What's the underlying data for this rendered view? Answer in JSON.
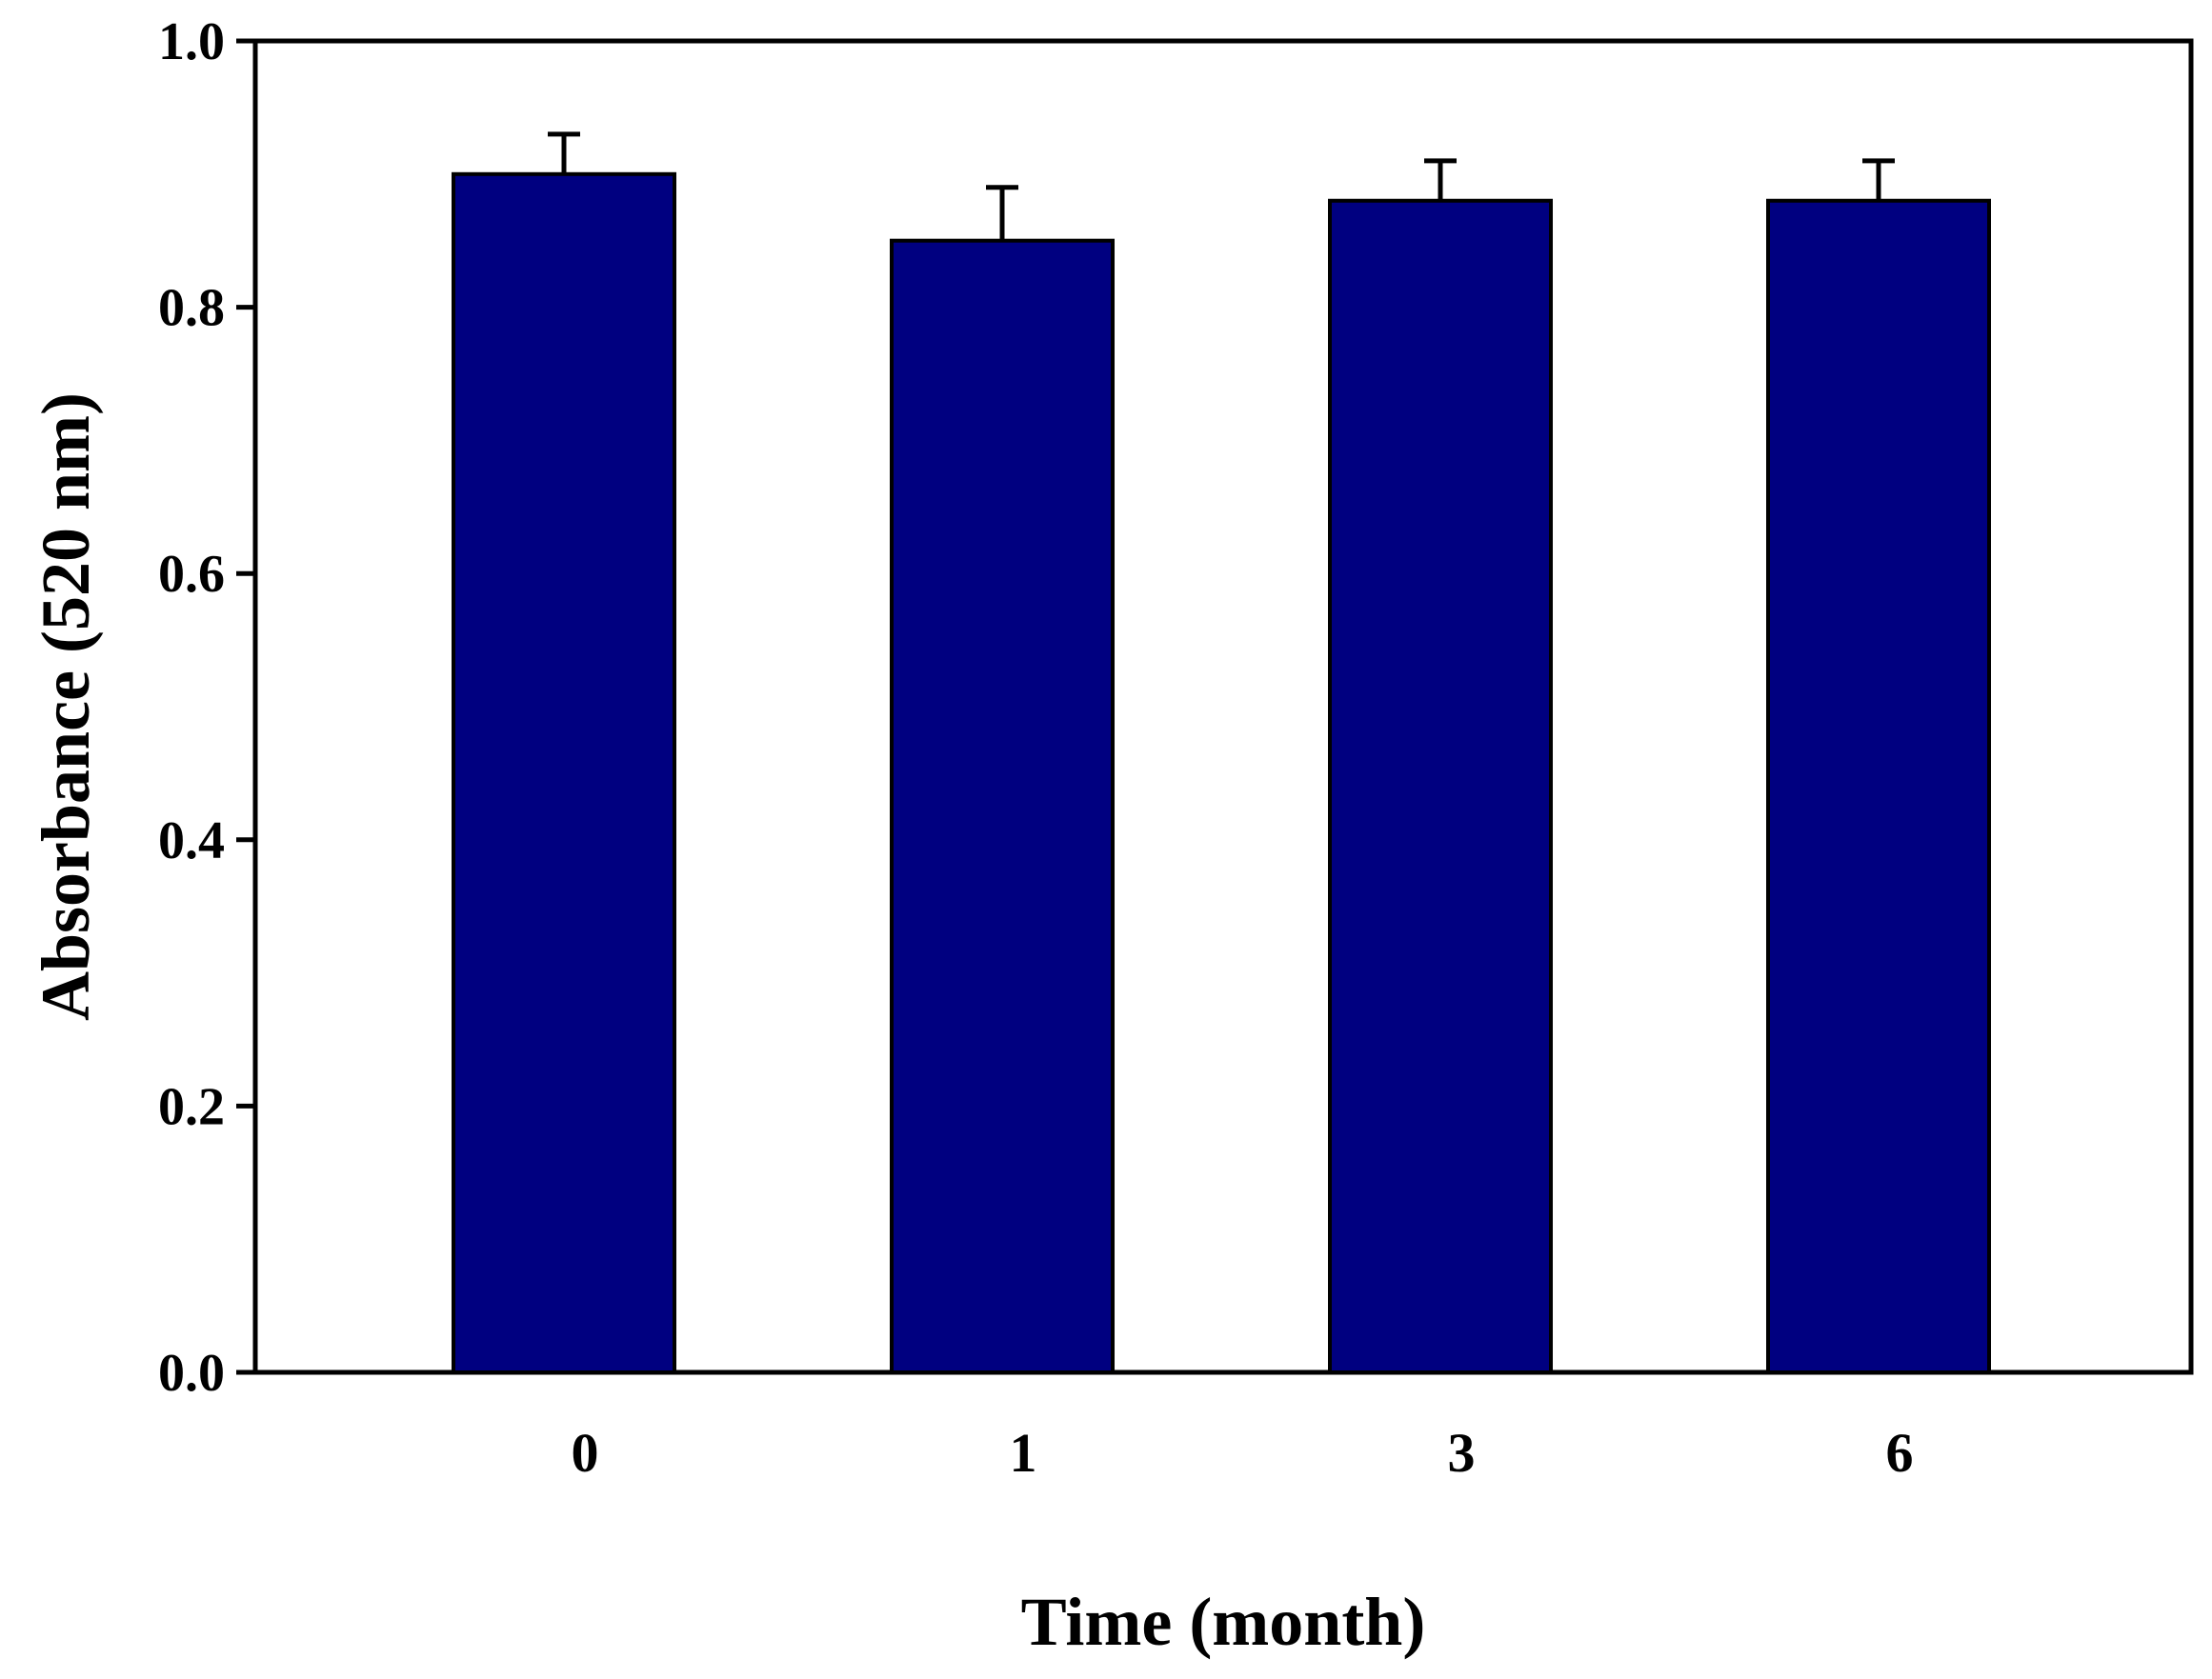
{
  "chart_data": {
    "type": "bar",
    "title": "",
    "xlabel": "Time (month)",
    "ylabel": "Absorbance (520 nm)",
    "categories": [
      "0",
      "1",
      "3",
      "6"
    ],
    "values": [
      0.9,
      0.85,
      0.88,
      0.88
    ],
    "error_bars": [
      0.03,
      0.04,
      0.03,
      0.03
    ],
    "ylim": [
      0.0,
      1.0
    ],
    "yticks": [
      "0.0",
      "0.2",
      "0.4",
      "0.6",
      "0.8",
      "1.0"
    ],
    "grid": false,
    "legend": "none",
    "colors": {
      "bar_fill": "#000080",
      "bar_stroke": "#000000",
      "axis": "#000000"
    }
  }
}
